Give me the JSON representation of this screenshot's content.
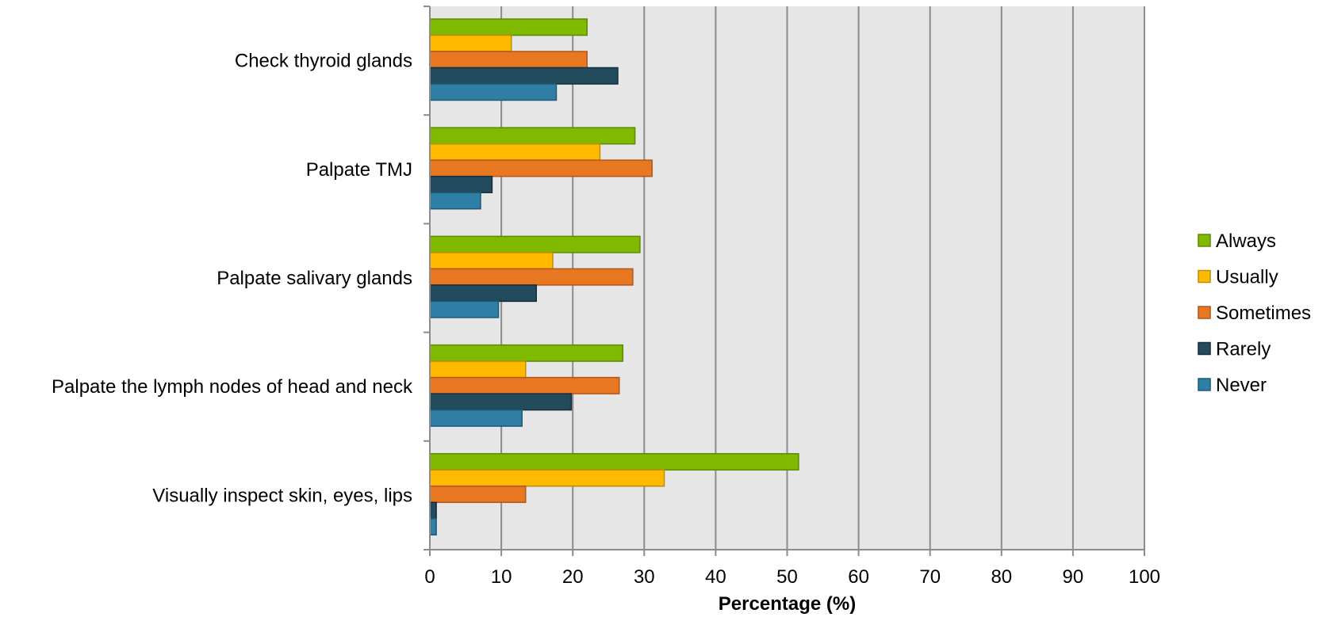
{
  "chart_data": {
    "type": "bar",
    "orientation": "horizontal",
    "title": "",
    "xlabel": "Percentage (%)",
    "ylabel": "",
    "xlim": [
      0,
      100
    ],
    "x_ticks": [
      0,
      10,
      20,
      30,
      40,
      50,
      60,
      70,
      80,
      90,
      100
    ],
    "grid": "vertical",
    "legend_position": "right",
    "categories": [
      "Check thyroid glands",
      "Palpate TMJ",
      "Palpate salivary glands",
      "Palpate the lymph nodes of head and neck",
      "Visually inspect skin, eyes, lips"
    ],
    "series": [
      {
        "name": "Always",
        "color": "#7FBA00",
        "stroke": "#5E8A00",
        "values": [
          22,
          28.7,
          29.4,
          27,
          51.6
        ]
      },
      {
        "name": "Usually",
        "color": "#FFBA00",
        "stroke": "#C08C00",
        "values": [
          11.4,
          23.8,
          17.2,
          13.4,
          32.8
        ]
      },
      {
        "name": "Sometimes",
        "color": "#E87722",
        "stroke": "#B0561A",
        "values": [
          22,
          31.1,
          28.4,
          26.5,
          13.4
        ]
      },
      {
        "name": "Rarely",
        "color": "#234B5E",
        "stroke": "#142E3A",
        "values": [
          26.3,
          8.7,
          14.9,
          19.8,
          0.9
        ]
      },
      {
        "name": "Never",
        "color": "#2E7EA6",
        "stroke": "#1E5A78",
        "values": [
          17.7,
          7.1,
          9.6,
          12.9,
          0.9
        ]
      }
    ]
  }
}
